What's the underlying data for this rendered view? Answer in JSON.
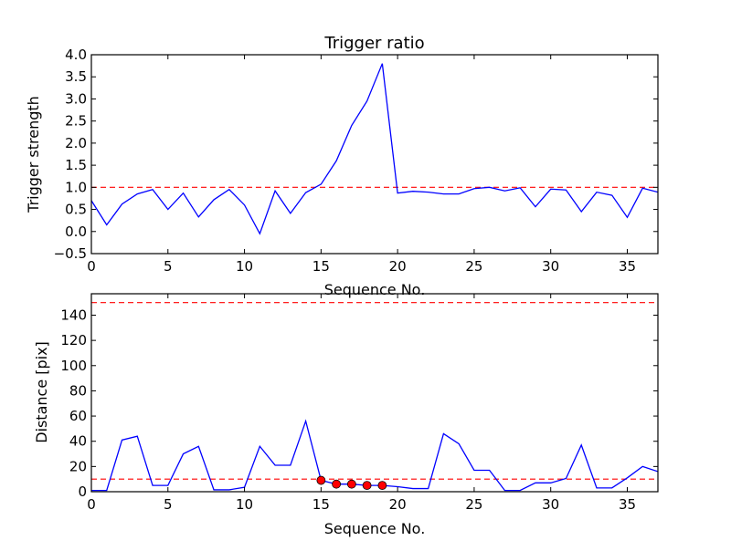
{
  "chart_data": [
    {
      "type": "line",
      "title": "Trigger ratio",
      "xlabel": "Sequence No.",
      "ylabel": "Trigger strength",
      "xlim": [
        0,
        37
      ],
      "ylim": [
        -0.5,
        4.0
      ],
      "xticks": [
        0,
        5,
        10,
        15,
        20,
        25,
        30,
        35
      ],
      "yticks": [
        -0.5,
        0.0,
        0.5,
        1.0,
        1.5,
        2.0,
        2.5,
        3.0,
        3.5,
        4.0
      ],
      "ytick_labels": [
        "−0.5",
        "0.0",
        "0.5",
        "1.0",
        "1.5",
        "2.0",
        "2.5",
        "3.0",
        "3.5",
        "4.0"
      ],
      "x": [
        0,
        1,
        2,
        3,
        4,
        5,
        6,
        7,
        8,
        9,
        10,
        11,
        12,
        13,
        14,
        15,
        16,
        17,
        18,
        19,
        20,
        21,
        22,
        23,
        24,
        25,
        26,
        27,
        28,
        29,
        30,
        31,
        32,
        33,
        34,
        35,
        36,
        37
      ],
      "series": [
        {
          "name": "trigger strength",
          "color": "#0000ff",
          "values": [
            0.7,
            0.15,
            0.62,
            0.85,
            0.95,
            0.5,
            0.87,
            0.33,
            0.72,
            0.95,
            0.6,
            -0.05,
            0.92,
            0.41,
            0.88,
            1.07,
            1.6,
            2.4,
            2.95,
            3.8,
            0.87,
            0.91,
            0.89,
            0.85,
            0.85,
            0.97,
            1.0,
            0.92,
            0.99,
            0.56,
            0.96,
            0.94,
            0.45,
            0.89,
            0.82,
            0.32,
            0.98,
            0.89
          ]
        }
      ],
      "hlines": [
        {
          "y": 1.0,
          "color": "#ff0000",
          "style": "dashed"
        }
      ]
    },
    {
      "type": "line",
      "title": "",
      "xlabel": "Sequence No.",
      "ylabel": "Distance [pix]",
      "xlim": [
        0,
        37
      ],
      "ylim": [
        0,
        157
      ],
      "xticks": [
        0,
        5,
        10,
        15,
        20,
        25,
        30,
        35
      ],
      "yticks": [
        0,
        20,
        40,
        60,
        80,
        100,
        120,
        140
      ],
      "ytick_labels": [
        "0",
        "20",
        "40",
        "60",
        "80",
        "100",
        "120",
        "140"
      ],
      "x": [
        0,
        1,
        2,
        3,
        4,
        5,
        6,
        7,
        8,
        9,
        10,
        11,
        12,
        13,
        14,
        15,
        16,
        17,
        18,
        19,
        20,
        21,
        22,
        23,
        24,
        25,
        26,
        27,
        28,
        29,
        30,
        31,
        32,
        33,
        34,
        35,
        36,
        37
      ],
      "series": [
        {
          "name": "distance",
          "color": "#0000ff",
          "values": [
            1,
            1,
            41,
            44,
            5,
            5,
            30,
            36,
            1.5,
            1.5,
            3.5,
            36,
            21,
            21,
            56,
            9,
            6,
            6,
            5,
            5,
            4,
            2.5,
            2.5,
            46,
            38,
            17,
            17,
            1,
            1,
            7,
            7,
            10.5,
            37,
            3,
            3,
            11,
            20,
            16
          ]
        }
      ],
      "markers": {
        "color": "#ff0000",
        "x": [
          15,
          16,
          17,
          18,
          19
        ],
        "y": [
          9,
          6,
          6,
          5,
          5
        ]
      },
      "hlines": [
        {
          "y": 10,
          "color": "#ff0000",
          "style": "dashed"
        },
        {
          "y": 150,
          "color": "#ff0000",
          "style": "dashed"
        }
      ]
    }
  ]
}
